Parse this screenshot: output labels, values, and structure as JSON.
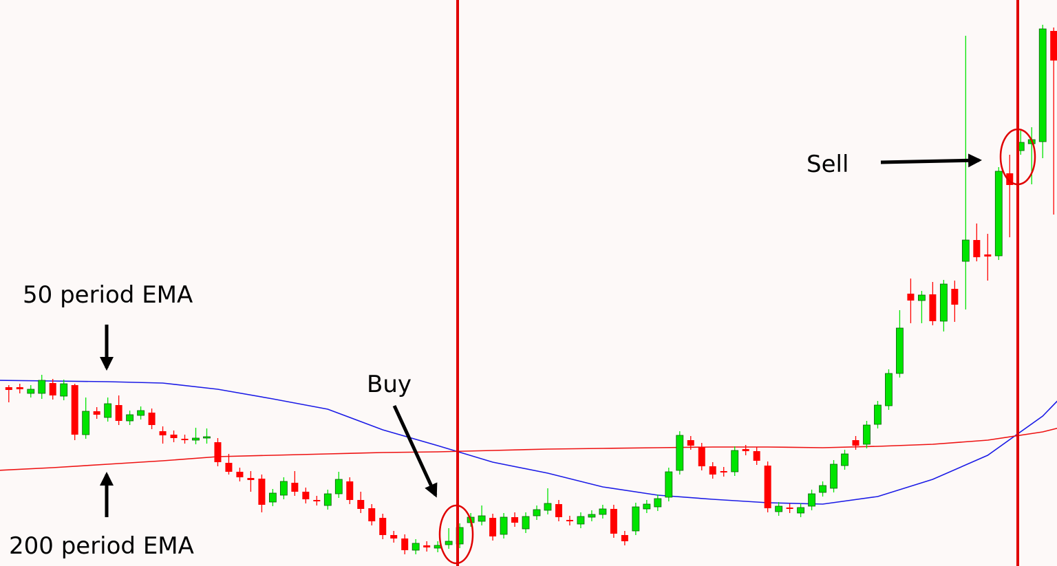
{
  "chart_data": {
    "type": "candlestick",
    "annotations": [
      "50 period EMA",
      "200 period EMA",
      "Buy",
      "Sell"
    ],
    "up_color": "#00e400",
    "down_color": "#ff0000",
    "xlim": [
      -0.8,
      95.3
    ],
    "ylim": [
      0,
      823
    ],
    "open": [
      260,
      260,
      251,
      251,
      266,
      247,
      263,
      191,
      225,
      216,
      234,
      211,
      219,
      223,
      196,
      191,
      185,
      183,
      186,
      180,
      150,
      137,
      128,
      127,
      93,
      103,
      121,
      108,
      96,
      88,
      105,
      123,
      96,
      84,
      70,
      45,
      40,
      23,
      30,
      26,
      31,
      32,
      63,
      65,
      70,
      46,
      71,
      54,
      73,
      81,
      90,
      67,
      61,
      71,
      75,
      83,
      45,
      51,
      83,
      86,
      100,
      139,
      183,
      173,
      145,
      138,
      137,
      170,
      167,
      146,
      79,
      85,
      77,
      87,
      107,
      113,
      146,
      183,
      177,
      206,
      233,
      280,
      396,
      386,
      395,
      356,
      403,
      443,
      474,
      453,
      451,
      571,
      604,
      614,
      617,
      778
    ],
    "high": [
      263,
      265,
      263,
      278,
      272,
      271,
      265,
      245,
      231,
      245,
      248,
      226,
      232,
      229,
      203,
      197,
      191,
      201,
      200,
      186,
      163,
      143,
      138,
      133,
      112,
      129,
      138,
      114,
      102,
      111,
      137,
      129,
      108,
      90,
      76,
      51,
      46,
      39,
      36,
      36,
      55,
      62,
      77,
      88,
      76,
      77,
      78,
      78,
      88,
      113,
      96,
      73,
      78,
      81,
      89,
      89,
      51,
      92,
      96,
      104,
      143,
      196,
      189,
      179,
      151,
      144,
      174,
      176,
      173,
      152,
      93,
      91,
      91,
      111,
      123,
      154,
      169,
      189,
      211,
      240,
      286,
      372,
      418,
      400,
      413,
      416,
      415,
      771,
      498,
      483,
      580,
      598,
      633,
      638,
      787,
      783
    ],
    "low": [
      238,
      251,
      245,
      243,
      242,
      241,
      183,
      185,
      214,
      210,
      205,
      205,
      213,
      199,
      178,
      180,
      178,
      177,
      178,
      145,
      133,
      123,
      108,
      78,
      87,
      97,
      102,
      91,
      88,
      82,
      99,
      90,
      77,
      59,
      39,
      34,
      17,
      17,
      21,
      20,
      25,
      26,
      57,
      59,
      37,
      40,
      57,
      48,
      67,
      75,
      65,
      59,
      55,
      65,
      69,
      41,
      30,
      45,
      77,
      80,
      94,
      133,
      169,
      139,
      127,
      130,
      131,
      161,
      147,
      78,
      73,
      77,
      71,
      81,
      101,
      107,
      140,
      169,
      171,
      200,
      227,
      274,
      353,
      353,
      350,
      341,
      355,
      373,
      443,
      415,
      445,
      478,
      598,
      555,
      593,
      511
    ],
    "close": [
      256,
      257,
      257,
      270,
      248,
      265,
      191,
      225,
      220,
      236,
      211,
      220,
      226,
      205,
      190,
      186,
      183,
      186,
      188,
      151,
      137,
      129,
      125,
      89,
      106,
      123,
      108,
      97,
      94,
      105,
      126,
      96,
      83,
      65,
      45,
      40,
      23,
      33,
      27,
      30,
      36,
      56,
      71,
      73,
      43,
      71,
      63,
      72,
      82,
      91,
      71,
      65,
      72,
      75,
      83,
      47,
      36,
      86,
      90,
      98,
      137,
      190,
      175,
      145,
      133,
      136,
      168,
      167,
      153,
      84,
      87,
      83,
      85,
      105,
      117,
      148,
      163,
      175,
      205,
      234,
      280,
      346,
      386,
      394,
      356,
      410,
      380,
      474,
      449,
      450,
      574,
      554,
      616,
      620,
      781,
      735
    ],
    "lines": [
      {
        "color": "#1a1ae6",
        "x": [
          -1,
          4,
          9,
          14,
          19,
          24,
          29,
          34,
          39,
          44,
          49,
          54,
          59,
          64,
          69,
          74,
          79,
          84,
          89,
          94,
          96
        ],
        "values": [
          270,
          269,
          268,
          266,
          257,
          243,
          228,
          198,
          175,
          151,
          135,
          115,
          103,
          97,
          92,
          90,
          101,
          126,
          161,
          218,
          251
        ]
      },
      {
        "color": "#ee1111",
        "x": [
          -1,
          4,
          9,
          14,
          19,
          24,
          29,
          34,
          39,
          44,
          49,
          54,
          59,
          64,
          69,
          74,
          79,
          84,
          89,
          94,
          96
        ],
        "values": [
          139,
          143,
          148,
          153,
          159,
          161,
          163,
          165,
          166,
          168,
          170,
          171,
          172,
          173,
          173,
          172,
          174,
          177,
          183,
          195,
          203
        ]
      }
    ]
  }
}
